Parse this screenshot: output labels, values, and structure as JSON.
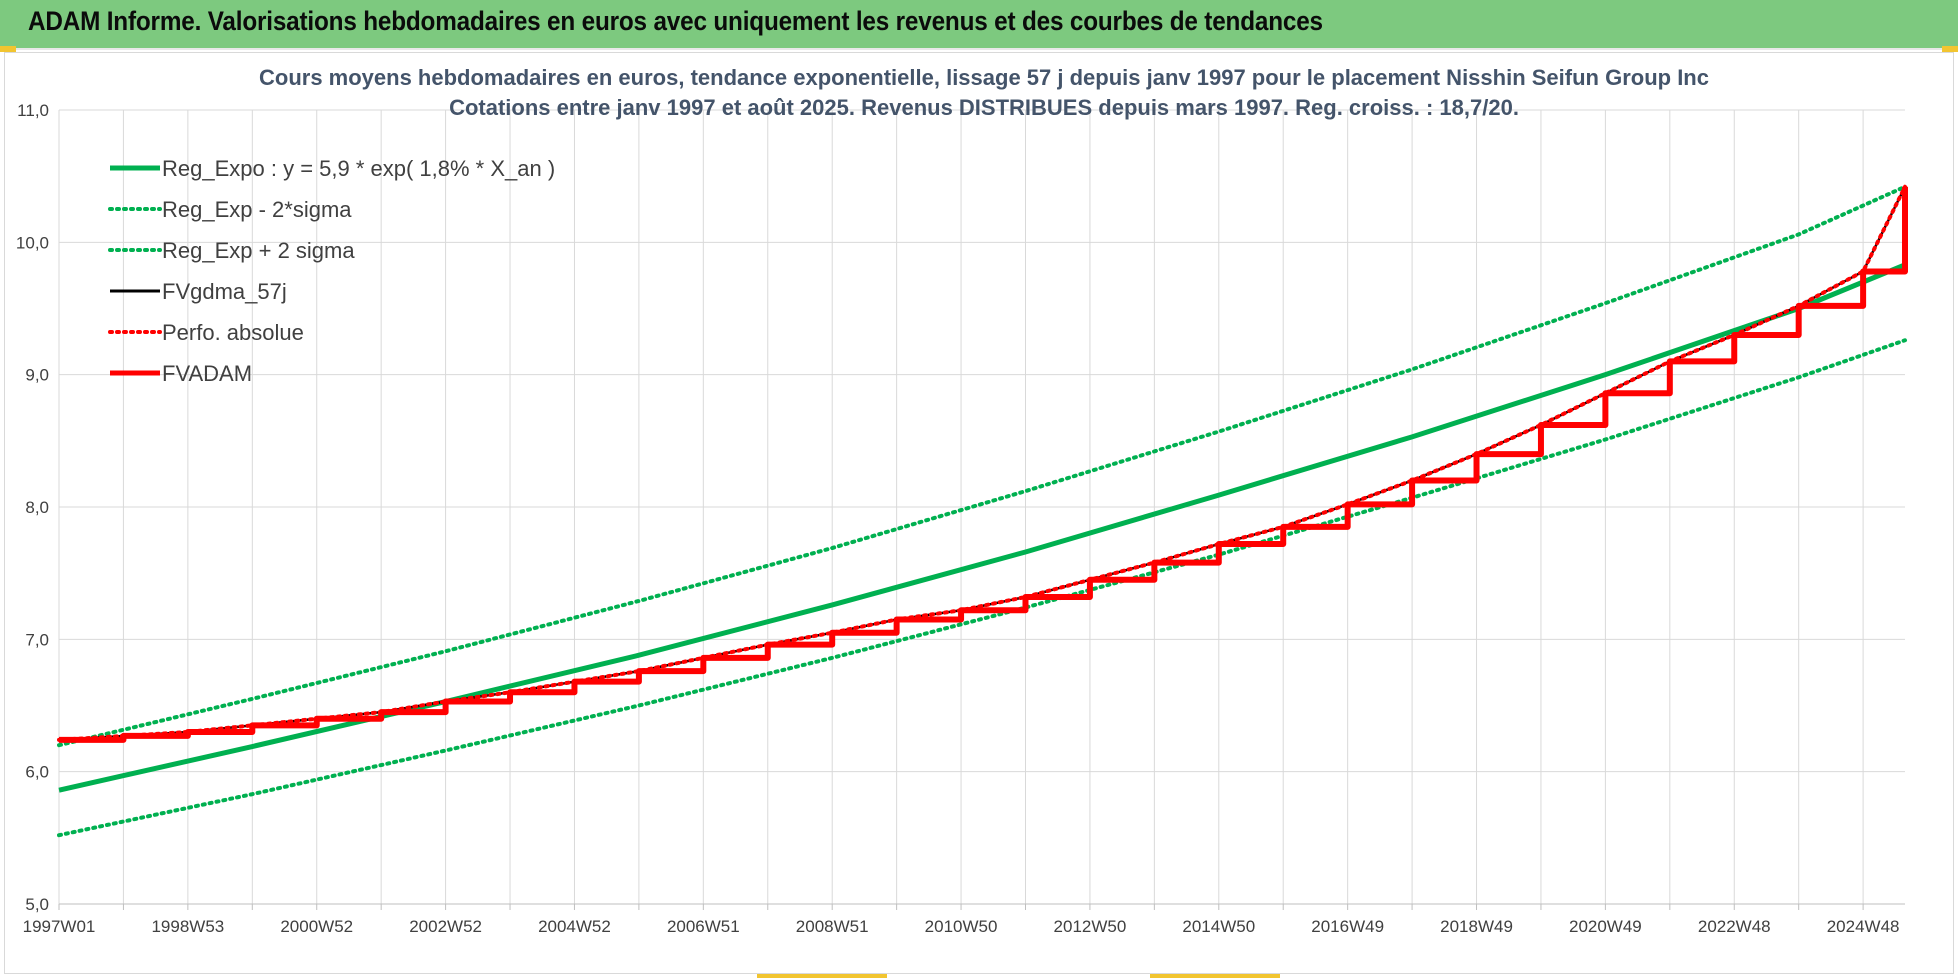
{
  "header": {
    "title": "ADAM Informe. Valorisations hebdomadaires en euros avec uniquement les revenus et des courbes de tendances"
  },
  "colors": {
    "header_bg": "#7dc97f",
    "green": "#00b050",
    "red": "#ff0000",
    "black": "#000000",
    "grid": "#d9d9d9",
    "title_text": "#44546a"
  },
  "chart_data": {
    "type": "line",
    "title_lines": [
      "Cours moyens hebdomadaires en euros, tendance exponentielle, lissage 57 j depuis janv 1997  pour le placement Nisshin Seifun Group Inc",
      "Cotations entre janv 1997 et août 2025. Revenus DISTRIBUES depuis mars 1997. Reg. croiss. : 18,7/20."
    ],
    "xlabel": "",
    "ylabel": "",
    "ylim": [
      5.0,
      11.0
    ],
    "y_ticks": [
      "5,0",
      "6,0",
      "7,0",
      "8,0",
      "9,0",
      "10,0",
      "11,0"
    ],
    "x_range_years": [
      1997.0,
      2025.65
    ],
    "x_ticks": [
      {
        "label": "1997W01",
        "year": 1997.0
      },
      {
        "label": "1998W53",
        "year": 1999.0
      },
      {
        "label": "2000W52",
        "year": 2001.0
      },
      {
        "label": "2002W52",
        "year": 2003.0
      },
      {
        "label": "2004W52",
        "year": 2005.0
      },
      {
        "label": "2006W51",
        "year": 2007.0
      },
      {
        "label": "2008W51",
        "year": 2009.0
      },
      {
        "label": "2010W50",
        "year": 2011.0
      },
      {
        "label": "2012W50",
        "year": 2013.0
      },
      {
        "label": "2014W50",
        "year": 2015.0
      },
      {
        "label": "2016W49",
        "year": 2017.0
      },
      {
        "label": "2018W49",
        "year": 2019.0
      },
      {
        "label": "2020W49",
        "year": 2021.0
      },
      {
        "label": "2022W48",
        "year": 2023.0
      },
      {
        "label": "2024W48",
        "year": 2025.0
      }
    ],
    "grid": true,
    "legend_placement": "top-left",
    "series": [
      {
        "name": "Reg_Expo : y = 5,9 * exp( 1,8% *  X_an )",
        "style": "solid",
        "color": "#00b050",
        "x": [
          1997,
          2000,
          2003,
          2006,
          2009,
          2012,
          2015,
          2018,
          2021,
          2024,
          2025.65
        ],
        "y": [
          5.86,
          6.19,
          6.53,
          6.88,
          7.26,
          7.66,
          8.09,
          8.53,
          9.0,
          9.5,
          9.83
        ]
      },
      {
        "name": "Reg_Exp - 2*sigma",
        "style": "dotted",
        "color": "#00b050",
        "x": [
          1997,
          2000,
          2003,
          2006,
          2009,
          2012,
          2015,
          2018,
          2021,
          2024,
          2025.65
        ],
        "y": [
          5.52,
          5.83,
          6.16,
          6.5,
          6.86,
          7.24,
          7.64,
          8.07,
          8.51,
          8.98,
          9.26
        ]
      },
      {
        "name": "Reg_Exp + 2 sigma",
        "style": "dotted",
        "color": "#00b050",
        "x": [
          1997,
          2000,
          2003,
          2006,
          2009,
          2012,
          2015,
          2018,
          2021,
          2024,
          2025.65
        ],
        "y": [
          6.2,
          6.55,
          6.91,
          7.29,
          7.69,
          8.12,
          8.57,
          9.04,
          9.54,
          10.06,
          10.42
        ]
      },
      {
        "name": "FVgdma_57j",
        "style": "solid",
        "color": "#000000",
        "x": [
          1997,
          1998,
          1999,
          2000,
          2001,
          2002,
          2003,
          2004,
          2005,
          2006,
          2007,
          2008,
          2009,
          2010,
          2011,
          2012,
          2013,
          2014,
          2015,
          2016,
          2017,
          2018,
          2019,
          2020,
          2021,
          2022,
          2023,
          2024,
          2025,
          2025.65
        ],
        "y": [
          6.24,
          6.27,
          6.3,
          6.35,
          6.4,
          6.45,
          6.53,
          6.6,
          6.68,
          6.76,
          6.86,
          6.96,
          7.05,
          7.15,
          7.22,
          7.32,
          7.45,
          7.58,
          7.72,
          7.85,
          8.02,
          8.2,
          8.4,
          8.62,
          8.86,
          9.1,
          9.3,
          9.52,
          9.78,
          10.42
        ]
      },
      {
        "name": "Perfo. absolue",
        "style": "dotted",
        "color": "#ff0000",
        "x": [
          1997,
          1998,
          1999,
          2000,
          2001,
          2002,
          2003,
          2004,
          2005,
          2006,
          2007,
          2008,
          2009,
          2010,
          2011,
          2012,
          2013,
          2014,
          2015,
          2016,
          2017,
          2018,
          2019,
          2020,
          2021,
          2022,
          2023,
          2024,
          2025,
          2025.65
        ],
        "y": [
          6.24,
          6.27,
          6.3,
          6.35,
          6.4,
          6.45,
          6.53,
          6.6,
          6.68,
          6.76,
          6.86,
          6.96,
          7.05,
          7.15,
          7.22,
          7.32,
          7.45,
          7.58,
          7.72,
          7.85,
          8.02,
          8.2,
          8.4,
          8.62,
          8.86,
          9.1,
          9.3,
          9.52,
          9.78,
          10.42
        ]
      },
      {
        "name": "FVADAM",
        "style": "step",
        "color": "#ff0000",
        "x": [
          1997,
          1998,
          1999,
          2000,
          2001,
          2002,
          2003,
          2004,
          2005,
          2006,
          2007,
          2008,
          2009,
          2010,
          2011,
          2012,
          2013,
          2014,
          2015,
          2016,
          2017,
          2018,
          2019,
          2020,
          2021,
          2022,
          2023,
          2024,
          2025,
          2025.65
        ],
        "y": [
          6.24,
          6.27,
          6.3,
          6.35,
          6.4,
          6.45,
          6.53,
          6.6,
          6.68,
          6.76,
          6.86,
          6.96,
          7.05,
          7.15,
          7.22,
          7.32,
          7.45,
          7.58,
          7.72,
          7.85,
          8.02,
          8.2,
          8.4,
          8.62,
          8.86,
          9.1,
          9.3,
          9.52,
          9.78,
          10.42
        ]
      }
    ]
  }
}
